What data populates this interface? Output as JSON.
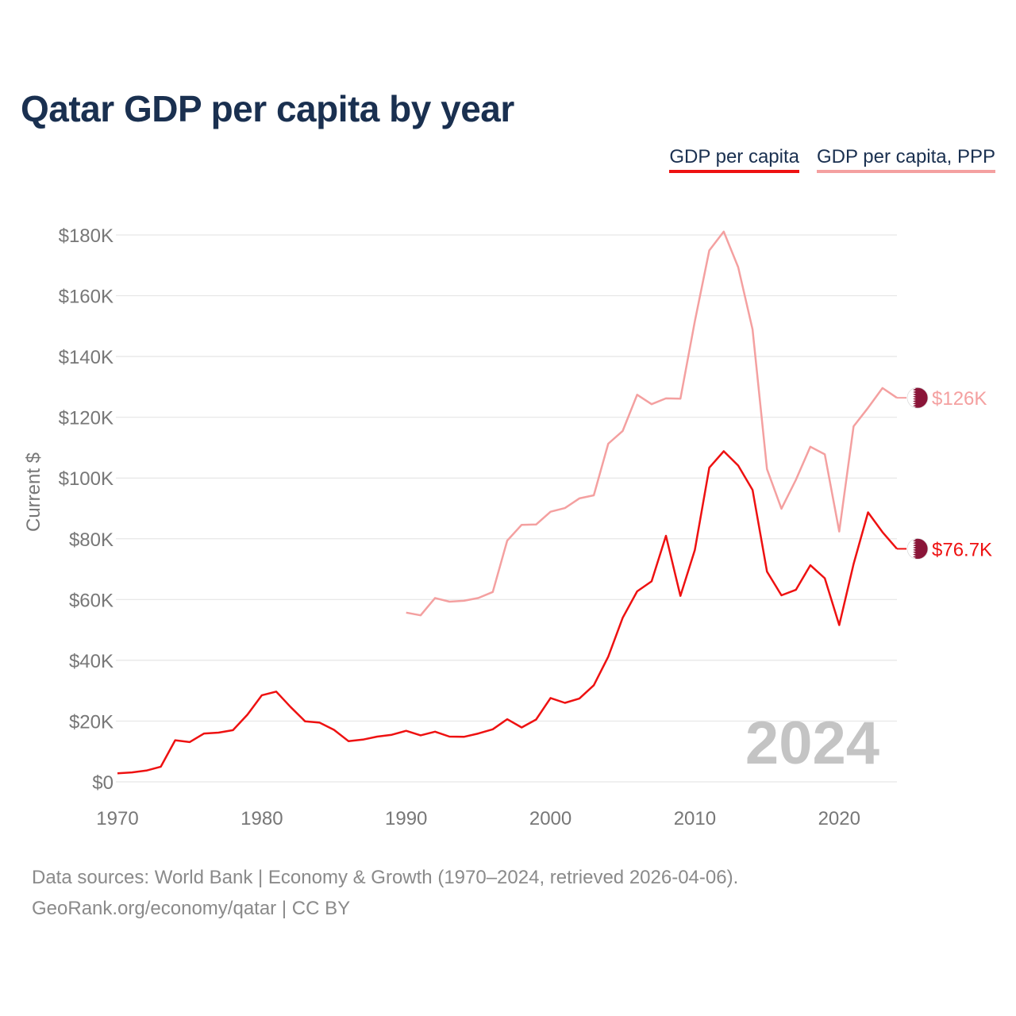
{
  "title": "Qatar GDP per capita by year",
  "legend": {
    "gdp": "GDP per capita",
    "ppp": "GDP per capita, PPP"
  },
  "colors": {
    "gdp": "#ee1111",
    "ppp": "#f4a0a0",
    "flag": "#8a1538",
    "title": "#1a3050",
    "axis_text": "#777777",
    "year_watermark": "#c4c4c4"
  },
  "footer": {
    "line1": "Data sources: World Bank | Economy & Growth (1970–2024, retrieved 2026-04-06).",
    "line2": "GeoRank.org/economy/qatar | CC BY"
  },
  "flag_icon": "qatar-flag-icon",
  "chart_data": {
    "type": "line",
    "title": "Qatar GDP per capita by year",
    "xlabel": "",
    "ylabel": "Current $",
    "xlim": [
      1970,
      2024
    ],
    "ylim": [
      0,
      180000
    ],
    "x_ticks": [
      1970,
      1980,
      1990,
      2000,
      2010,
      2020
    ],
    "x_tick_labels": [
      "1970",
      "1980",
      "1990",
      "2000",
      "2010",
      "2020"
    ],
    "y_ticks": [
      0,
      20000,
      40000,
      60000,
      80000,
      100000,
      120000,
      140000,
      160000,
      180000
    ],
    "y_tick_labels": [
      "$0",
      "$20K",
      "$40K",
      "$60K",
      "$80K",
      "$100K",
      "$120K",
      "$140K",
      "$160K",
      "$180K"
    ],
    "current_year_label": "2024",
    "grid": true,
    "series": [
      {
        "name": "GDP per capita",
        "color": "#ee1111",
        "end_label": "$76.7K",
        "x": [
          1970,
          1971,
          1972,
          1973,
          1974,
          1975,
          1976,
          1977,
          1978,
          1979,
          1980,
          1981,
          1982,
          1983,
          1984,
          1985,
          1986,
          1987,
          1988,
          1989,
          1990,
          1991,
          1992,
          1993,
          1994,
          1995,
          1996,
          1997,
          1998,
          1999,
          2000,
          2001,
          2002,
          2003,
          2004,
          2005,
          2006,
          2007,
          2008,
          2009,
          2010,
          2011,
          2012,
          2013,
          2014,
          2015,
          2016,
          2017,
          2018,
          2019,
          2020,
          2021,
          2022,
          2023,
          2024
        ],
        "values": [
          2800,
          3100,
          3700,
          5000,
          13700,
          13100,
          15900,
          16200,
          17000,
          22100,
          28500,
          29700,
          24600,
          19900,
          19500,
          17100,
          13400,
          13900,
          14900,
          15500,
          16800,
          15300,
          16500,
          14900,
          14800,
          15900,
          17300,
          20600,
          17900,
          20500,
          27600,
          26000,
          27400,
          31800,
          41200,
          54000,
          62700,
          66000,
          81000,
          61200,
          76300,
          103400,
          108800,
          104100,
          96100,
          69200,
          61400,
          63200,
          71300,
          67000,
          51600,
          71700,
          88700,
          82200,
          76700
        ]
      },
      {
        "name": "GDP per capita, PPP",
        "color": "#f4a0a0",
        "end_label": "$126K",
        "x": [
          1990,
          1991,
          1992,
          1993,
          1994,
          1995,
          1996,
          1997,
          1998,
          1999,
          2000,
          2001,
          2002,
          2003,
          2004,
          2005,
          2006,
          2007,
          2008,
          2009,
          2010,
          2011,
          2012,
          2013,
          2014,
          2015,
          2016,
          2017,
          2018,
          2019,
          2020,
          2021,
          2022,
          2023,
          2024
        ],
        "values": [
          55700,
          54800,
          60500,
          59300,
          59600,
          60500,
          62500,
          79400,
          84600,
          84700,
          88900,
          90100,
          93300,
          94300,
          111300,
          115500,
          127400,
          124300,
          126200,
          126100,
          151600,
          174900,
          181100,
          169400,
          148900,
          102900,
          89900,
          99400,
          110300,
          107800,
          82400,
          117000,
          123100,
          129600,
          126400
        ]
      }
    ]
  }
}
